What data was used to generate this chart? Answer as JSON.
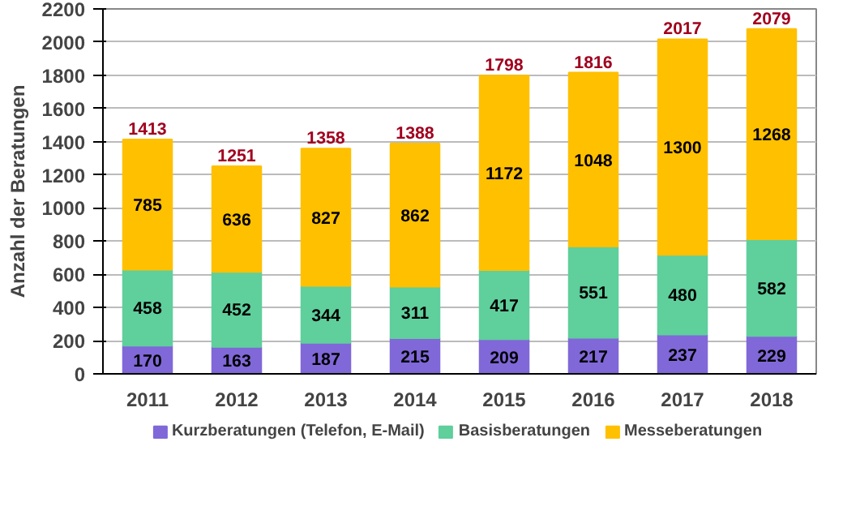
{
  "chart_data": {
    "type": "bar",
    "stacked": true,
    "ylabel": "Anzahl der Beratungen",
    "categories": [
      "2011",
      "2012",
      "2013",
      "2014",
      "2015",
      "2016",
      "2017",
      "2018"
    ],
    "series": [
      {
        "name": "Kurzberatungen (Telefon, E-Mail)",
        "color": "#8068d8",
        "values": [
          170,
          163,
          187,
          215,
          209,
          217,
          237,
          229
        ]
      },
      {
        "name": "Basisberatungen",
        "color": "#5fcf9c",
        "values": [
          458,
          452,
          344,
          311,
          417,
          551,
          480,
          582
        ]
      },
      {
        "name": "Messeberatungen",
        "color": "#ffc000",
        "values": [
          785,
          636,
          827,
          862,
          1172,
          1048,
          1300,
          1268
        ]
      }
    ],
    "totals": [
      "1413",
      "1251",
      "1358",
      "1388",
      "1798",
      "1816",
      "2017",
      "2079"
    ],
    "data_labels": true,
    "ylim": [
      0,
      2200
    ],
    "yticks": [
      0,
      200,
      400,
      600,
      800,
      1000,
      1200,
      1400,
      1600,
      1800,
      2000,
      2200
    ],
    "grid": "y",
    "legend": "bottom"
  }
}
